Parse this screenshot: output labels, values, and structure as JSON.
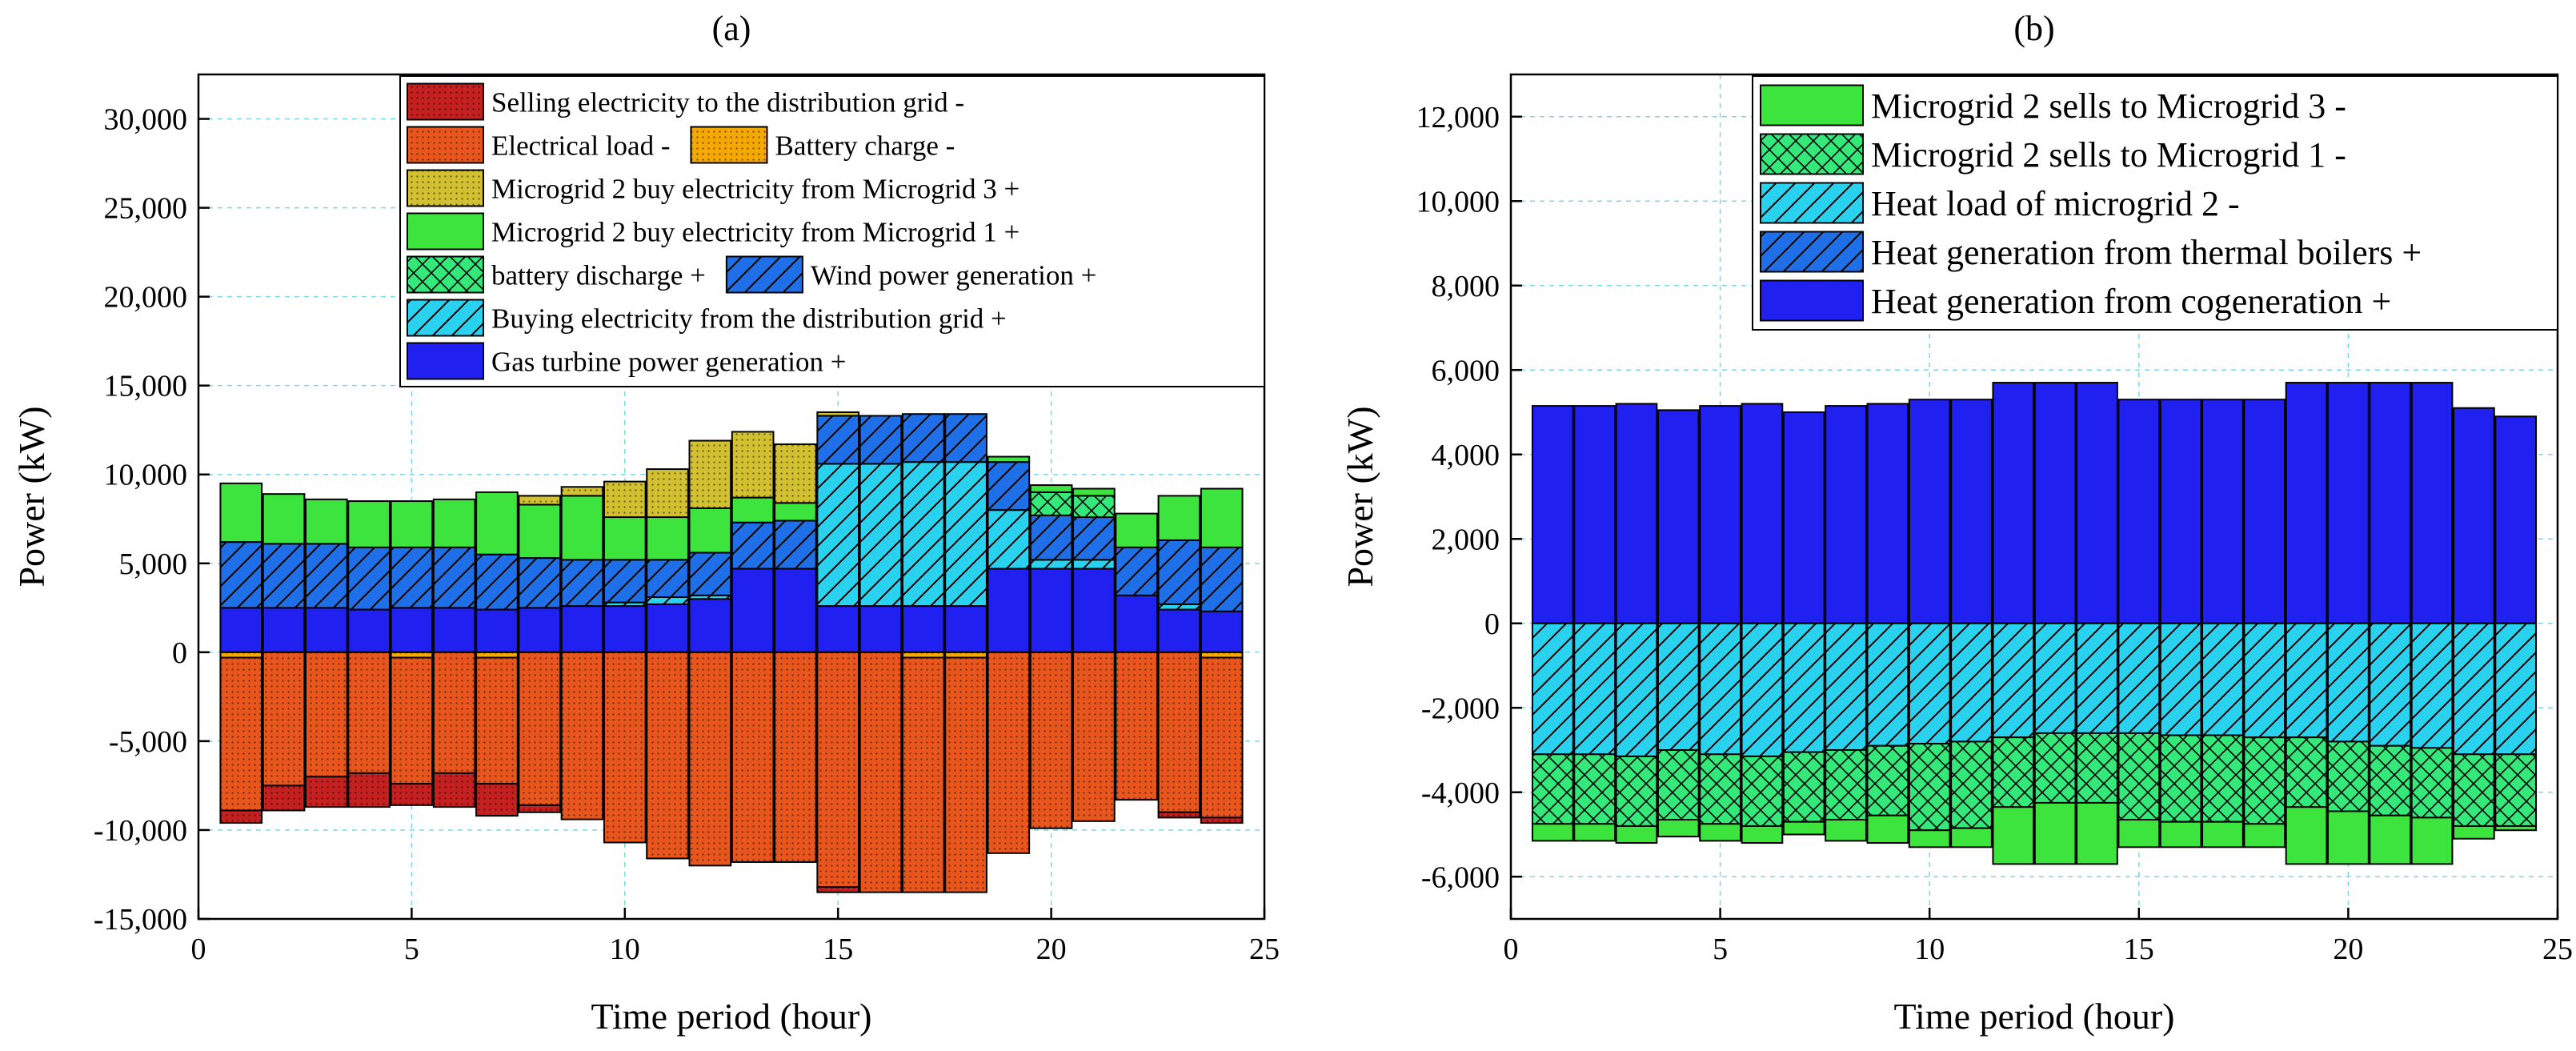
{
  "chart_data": [
    {
      "panel": "(a)",
      "type": "bar",
      "stacked": true,
      "title": "(a)",
      "xlabel": "Time period (hour)",
      "ylabel": "Power (kW)",
      "xlim": [
        0,
        25
      ],
      "ylim": [
        -15000,
        32500
      ],
      "xticks": [
        0,
        5,
        10,
        15,
        20,
        25
      ],
      "xtick_labels": [
        "0",
        "5",
        "10",
        "15",
        "20",
        "25"
      ],
      "yticks": [
        -15000,
        -10000,
        -5000,
        0,
        5000,
        10000,
        15000,
        20000,
        25000,
        30000
      ],
      "ytick_labels": [
        "-15,000",
        "-10,000",
        "-5,000",
        "0",
        "5,000",
        "10,000",
        "15,000",
        "20,000",
        "25,000",
        "30,000"
      ],
      "grid": true,
      "legend_position": "top-right",
      "categories": [
        1,
        2,
        3,
        4,
        5,
        6,
        7,
        8,
        9,
        10,
        11,
        12,
        13,
        14,
        15,
        16,
        17,
        18,
        19,
        20,
        21,
        22,
        23,
        24
      ],
      "series": [
        {
          "name": "Gas turbine power generation +",
          "color": "#2020f0",
          "pattern": "solid",
          "direction": "positive",
          "values": [
            2500,
            2500,
            2500,
            2400,
            2500,
            2500,
            2400,
            2500,
            2600,
            2600,
            2700,
            3000,
            4700,
            4700,
            2600,
            2600,
            2600,
            2600,
            4700,
            4700,
            4700,
            3200,
            2400,
            2300
          ]
        },
        {
          "name": "Buying electricity from the distribution grid +",
          "color": "#29d3f0",
          "pattern": "diag",
          "direction": "positive",
          "values": [
            0,
            0,
            0,
            0,
            0,
            0,
            0,
            0,
            0,
            200,
            400,
            200,
            0,
            0,
            8000,
            8000,
            8100,
            8100,
            3300,
            500,
            500,
            0,
            300,
            0
          ]
        },
        {
          "name": "Wind power generation +",
          "color": "#1f6fe8",
          "pattern": "diag",
          "direction": "positive",
          "values": [
            3700,
            3600,
            3600,
            3500,
            3400,
            3400,
            3100,
            2800,
            2600,
            2400,
            2100,
            2400,
            2600,
            2700,
            2700,
            2700,
            2700,
            2700,
            2700,
            2500,
            2400,
            2700,
            3600,
            3600
          ]
        },
        {
          "name": "battery discharge +",
          "color": "#34e87a",
          "pattern": "cross",
          "direction": "positive",
          "values": [
            0,
            0,
            0,
            0,
            0,
            0,
            0,
            0,
            0,
            0,
            0,
            0,
            0,
            0,
            0,
            0,
            0,
            0,
            0,
            1300,
            1200,
            0,
            0,
            0
          ]
        },
        {
          "name": "Microgrid 2 buy electricity from Microgrid 1 +",
          "color": "#3ee43e",
          "pattern": "solid",
          "direction": "positive",
          "values": [
            3300,
            2800,
            2500,
            2600,
            2600,
            2700,
            3500,
            3000,
            3600,
            2400,
            2400,
            2500,
            1400,
            1000,
            0,
            0,
            0,
            0,
            300,
            400,
            400,
            1900,
            2500,
            3300
          ]
        },
        {
          "name": "Microgrid 2 buy electricity from Microgrid 3 +",
          "color": "#d2c030",
          "pattern": "dots",
          "direction": "positive",
          "values": [
            0,
            0,
            0,
            0,
            0,
            0,
            0,
            500,
            500,
            2000,
            2700,
            3800,
            3700,
            3300,
            200,
            0,
            0,
            0,
            0,
            0,
            0,
            0,
            0,
            0
          ]
        },
        {
          "name": "Battery charge -",
          "color": "#f5a800",
          "pattern": "dots",
          "direction": "negative",
          "values": [
            300,
            0,
            0,
            0,
            300,
            0,
            300,
            0,
            0,
            0,
            0,
            0,
            0,
            0,
            0,
            0,
            300,
            300,
            0,
            0,
            0,
            0,
            0,
            300
          ]
        },
        {
          "name": "Electrical load -",
          "color": "#e8561e",
          "pattern": "dots",
          "direction": "negative",
          "values": [
            8600,
            7500,
            7000,
            6800,
            7100,
            6800,
            7100,
            8600,
            9400,
            10700,
            11600,
            12000,
            11800,
            11800,
            13200,
            13500,
            13200,
            13200,
            11300,
            9900,
            9500,
            8300,
            9000,
            9000
          ]
        },
        {
          "name": "Selling electricity to the distribution grid -",
          "color": "#c42020",
          "pattern": "dots",
          "direction": "negative",
          "values": [
            700,
            1400,
            1700,
            1900,
            1200,
            1900,
            1800,
            400,
            0,
            0,
            0,
            0,
            0,
            0,
            300,
            0,
            0,
            0,
            0,
            0,
            0,
            0,
            300,
            300
          ]
        }
      ],
      "legend": [
        [
          "Selling electricity to the distribution grid -"
        ],
        [
          "Electrical load -",
          "Battery charge -"
        ],
        [
          "Microgrid 2 buy electricity from Microgrid 3 +"
        ],
        [
          "Microgrid 2 buy electricity from Microgrid 1 +"
        ],
        [
          "battery discharge +",
          "Wind power generation +"
        ],
        [
          "Buying electricity from the distribution grid +"
        ],
        [
          "Gas turbine power generation +"
        ]
      ]
    },
    {
      "panel": "(b)",
      "type": "bar",
      "stacked": true,
      "title": "(b)",
      "xlabel": "Time period (hour)",
      "ylabel": "Power (kW)",
      "xlim": [
        0,
        25
      ],
      "ylim": [
        -7000,
        13000
      ],
      "xticks": [
        0,
        5,
        10,
        15,
        20,
        25
      ],
      "xtick_labels": [
        "0",
        "5",
        "10",
        "15",
        "20",
        "25"
      ],
      "yticks": [
        -6000,
        -4000,
        -2000,
        0,
        2000,
        4000,
        6000,
        8000,
        10000,
        12000
      ],
      "ytick_labels": [
        "-6,000",
        "-4,000",
        "-2,000",
        "0",
        "2,000",
        "4,000",
        "6,000",
        "8,000",
        "10,000",
        "12,000"
      ],
      "grid": true,
      "legend_position": "top-right",
      "categories": [
        1,
        2,
        3,
        4,
        5,
        6,
        7,
        8,
        9,
        10,
        11,
        12,
        13,
        14,
        15,
        16,
        17,
        18,
        19,
        20,
        21,
        22,
        23,
        24
      ],
      "series": [
        {
          "name": "Heat generation from cogeneration +",
          "color": "#2020f0",
          "pattern": "solid",
          "direction": "positive",
          "values": [
            5150,
            5150,
            5200,
            5050,
            5150,
            5200,
            5000,
            5150,
            5200,
            5300,
            5300,
            5700,
            5700,
            5700,
            5300,
            5300,
            5300,
            5300,
            5700,
            5700,
            5700,
            5700,
            5100,
            4900
          ]
        },
        {
          "name": "Heat generation from thermal boilers +",
          "color": "#1f6fe8",
          "pattern": "diag",
          "direction": "positive",
          "values": [
            0,
            0,
            0,
            0,
            0,
            0,
            0,
            0,
            0,
            0,
            0,
            0,
            0,
            0,
            0,
            0,
            0,
            0,
            0,
            0,
            0,
            0,
            0,
            0
          ]
        },
        {
          "name": "Heat load of microgrid 2 -",
          "color": "#29d3f0",
          "pattern": "diag",
          "direction": "negative",
          "values": [
            3100,
            3100,
            3150,
            3000,
            3100,
            3150,
            3050,
            3000,
            2900,
            2850,
            2800,
            2700,
            2600,
            2600,
            2600,
            2650,
            2650,
            2700,
            2700,
            2800,
            2900,
            2950,
            3100,
            3100
          ]
        },
        {
          "name": "Microgrid 2 sells to Microgrid 1 -",
          "color": "#34e87a",
          "pattern": "cross",
          "direction": "negative",
          "values": [
            1650,
            1650,
            1650,
            1650,
            1650,
            1650,
            1650,
            1650,
            1650,
            2050,
            2050,
            1650,
            1650,
            1650,
            2050,
            2050,
            2050,
            2050,
            1650,
            1650,
            1650,
            1650,
            1700,
            1700
          ]
        },
        {
          "name": "Microgrid 2 sells to Microgrid 3 -",
          "color": "#3ee43e",
          "pattern": "solid",
          "direction": "negative",
          "values": [
            400,
            400,
            400,
            400,
            400,
            400,
            300,
            500,
            650,
            400,
            450,
            1350,
            1450,
            1450,
            650,
            600,
            600,
            550,
            1350,
            1250,
            1150,
            1100,
            300,
            100
          ]
        }
      ],
      "legend": [
        "Microgrid 2 sells to Microgrid 3 -",
        "Microgrid 2 sells to Microgrid 1 -",
        "Heat load of microgrid 2 -",
        "Heat generation from thermal boilers +",
        "Heat generation from cogeneration +"
      ]
    }
  ]
}
